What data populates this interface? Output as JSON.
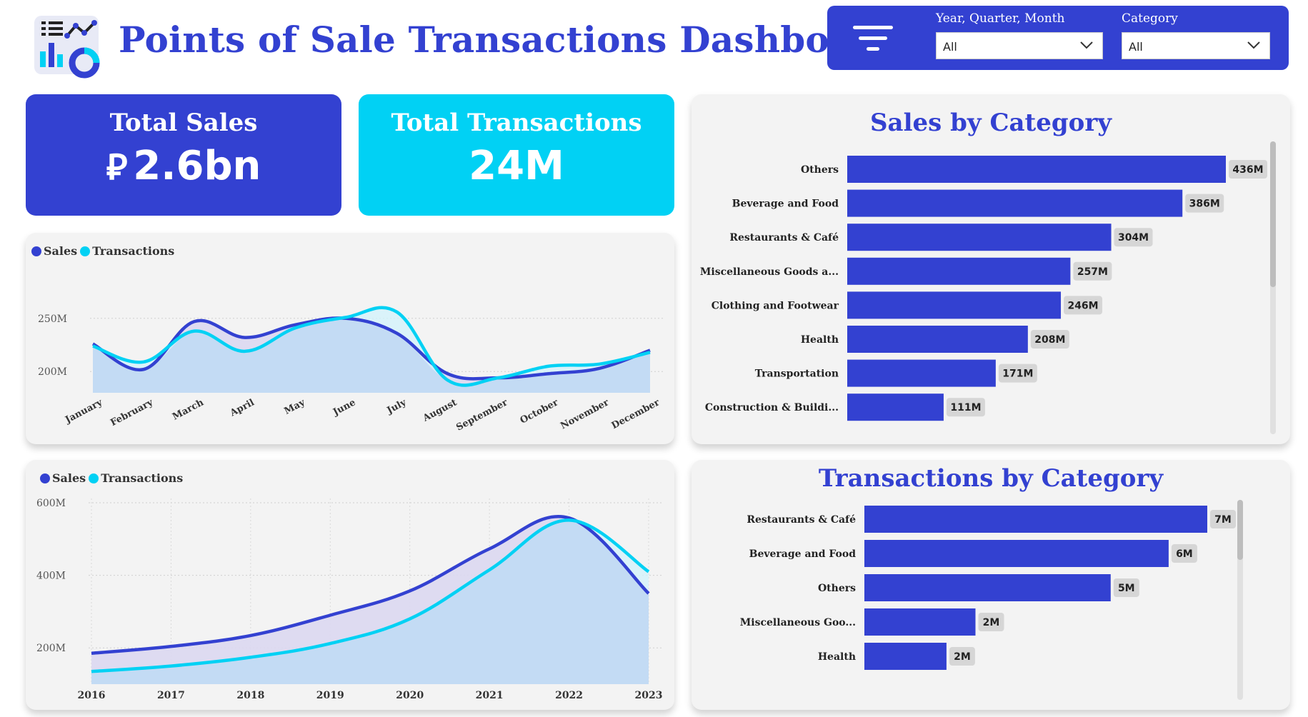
{
  "header": {
    "title": "Points of Sale Transactions Dashboard",
    "logo_icon": "dashboard-analytics-icon"
  },
  "filters": {
    "icon": "filter-icon",
    "date": {
      "label": "Year, Quarter, Month",
      "value": "All"
    },
    "category": {
      "label": "Category",
      "value": "All"
    }
  },
  "kpis": {
    "sales": {
      "title": "Total Sales",
      "currency_symbol": "⃁",
      "value": "2.6bn"
    },
    "transactions": {
      "title": "Total Transactions",
      "value": "24M"
    }
  },
  "colors": {
    "primary": "#3341d1",
    "accent": "#01d1f4",
    "area_fill": "#c3dbf4",
    "panel_bg": "#f3f3f3"
  },
  "chart_data": [
    {
      "id": "monthly",
      "type": "line",
      "legend": [
        "Sales",
        "Transactions"
      ],
      "legend_placement": "top-left",
      "categories": [
        "January",
        "February",
        "March",
        "April",
        "May",
        "June",
        "July",
        "August",
        "September",
        "October",
        "November",
        "December"
      ],
      "series": [
        {
          "name": "Sales",
          "values": [
            226,
            202,
            247,
            232,
            244,
            250,
            236,
            198,
            194,
            198,
            203,
            220
          ]
        },
        {
          "name": "Transactions",
          "values": [
            224,
            209,
            238,
            219,
            241,
            251,
            256,
            192,
            194,
            205,
            207,
            218
          ]
        }
      ],
      "y_ticks": [
        "250M",
        "200M"
      ],
      "y_tick_values": [
        250,
        200
      ],
      "ylim": [
        180,
        270
      ],
      "grid": true
    },
    {
      "id": "yearly",
      "type": "line",
      "legend": [
        "Sales",
        "Transactions"
      ],
      "legend_placement": "top-left",
      "categories": [
        "2016",
        "2017",
        "2018",
        "2019",
        "2020",
        "2021",
        "2022",
        "2023"
      ],
      "series": [
        {
          "name": "Sales",
          "values": [
            185,
            204,
            234,
            290,
            357,
            473,
            558,
            350
          ]
        },
        {
          "name": "Transactions",
          "values": [
            135,
            150,
            174,
            212,
            280,
            415,
            552,
            410
          ]
        }
      ],
      "y_ticks": [
        "600M",
        "400M",
        "200M"
      ],
      "y_tick_values": [
        600,
        400,
        200
      ],
      "ylim": [
        100,
        600
      ],
      "grid": true
    },
    {
      "id": "sales-by-category",
      "type": "bar",
      "title": "Sales by Category",
      "categories": [
        "Others",
        "Beverage and Food",
        "Restaurants & Café",
        "Miscellaneous Goods a...",
        "Clothing and Footwear",
        "Health",
        "Transportation",
        "Construction & Buildi..."
      ],
      "values": [
        436,
        386,
        304,
        257,
        246,
        208,
        171,
        111
      ],
      "value_labels": [
        "436M",
        "386M",
        "304M",
        "257M",
        "246M",
        "208M",
        "171M",
        "111M"
      ],
      "xlim": [
        0,
        436
      ]
    },
    {
      "id": "transactions-by-category",
      "type": "bar",
      "title": "Transactions by Category",
      "categories": [
        "Restaurants & Café",
        "Beverage and Food",
        "Others",
        "Miscellaneous Goo...",
        "Health"
      ],
      "values": [
        7.1,
        6.3,
        5.1,
        2.3,
        1.7
      ],
      "value_labels": [
        "7M",
        "6M",
        "5M",
        "2M",
        "2M"
      ],
      "xlim": [
        0,
        7.1
      ]
    }
  ]
}
